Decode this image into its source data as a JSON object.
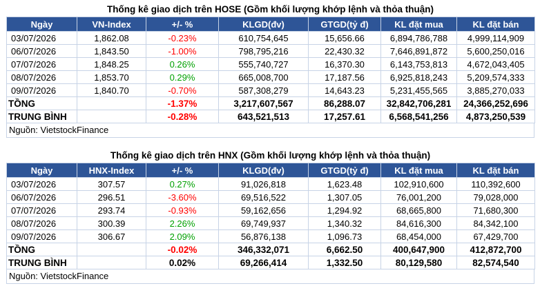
{
  "hose": {
    "title": "Thống kê giao dịch trên HOSE (Gồm khối lượng khớp lệnh và thỏa thuận)",
    "headers": [
      "Ngày",
      "VN-Index",
      "+/- %",
      "KLGD(đv)",
      "GTGD(tỷ đ)",
      "KL đặt mua",
      "KL đặt bán"
    ],
    "rows": [
      [
        "03/07/2026",
        "1,862.08",
        "-0.23%",
        "610,754,645",
        "15,656.66",
        "6,894,786,788",
        "4,999,114,909"
      ],
      [
        "06/07/2026",
        "1,843.50",
        "-1.00%",
        "798,795,216",
        "22,430.32",
        "7,646,891,872",
        "5,600,250,016"
      ],
      [
        "07/07/2026",
        "1,848.25",
        "0.26%",
        "555,740,727",
        "16,370.30",
        "6,143,753,813",
        "4,672,043,405"
      ],
      [
        "08/07/2026",
        "1,853.70",
        "0.29%",
        "665,008,700",
        "17,187.56",
        "6,925,818,243",
        "5,209,574,333"
      ],
      [
        "09/07/2026",
        "1,840.70",
        "-0.70%",
        "587,308,279",
        "14,643.23",
        "5,231,455,565",
        "3,885,270,033"
      ]
    ],
    "total": [
      "TỒNG",
      "",
      "-1.37%",
      "3,217,607,567",
      "86,288.07",
      "32,842,706,281",
      "24,366,252,696"
    ],
    "average": [
      "TRUNG BÌNH",
      "",
      "-0.28%",
      "643,521,513",
      "17,257.61",
      "6,568,541,256",
      "4,873,250,539"
    ],
    "source": "Nguồn: VietstockFinance"
  },
  "hnx": {
    "title": "Thống kê giao dịch trên HNX (Gồm khối lượng khớp lệnh và thỏa thuận)",
    "headers": [
      "Ngày",
      "HNX-Index",
      "+/- %",
      "KLGD(đv)",
      "GTGD(tỷ đ)",
      "KL đặt mua",
      "KL đặt bán"
    ],
    "rows": [
      [
        "03/07/2026",
        "307.57",
        "0.27%",
        "91,026,818",
        "1,623.48",
        "102,910,600",
        "110,392,600"
      ],
      [
        "06/07/2026",
        "296.51",
        "-3.60%",
        "69,516,522",
        "1,307.05",
        "76,001,200",
        "79,028,000"
      ],
      [
        "07/07/2026",
        "293.74",
        "-0.93%",
        "59,162,656",
        "1,294.92",
        "68,665,800",
        "71,680,300"
      ],
      [
        "08/07/2026",
        "300.39",
        "2.26%",
        "69,749,937",
        "1,340.32",
        "84,616,300",
        "84,342,100"
      ],
      [
        "09/07/2026",
        "306.67",
        "2.09%",
        "56,876,138",
        "1,096.73",
        "68,454,000",
        "67,429,700"
      ]
    ],
    "total": [
      "TỒNG",
      "",
      "-0.02%",
      "346,332,071",
      "6,662.50",
      "400,647,900",
      "412,872,700"
    ],
    "average": [
      "TRUNG BÌNH",
      "",
      "0.02%",
      "69,266,414",
      "1,332.50",
      "80,129,580",
      "82,574,540"
    ],
    "source": "Nguồn: VietstockFinance"
  },
  "colors": {
    "header_bg": "#2e5597",
    "negative": "#ff0000",
    "positive": "#00a000"
  }
}
